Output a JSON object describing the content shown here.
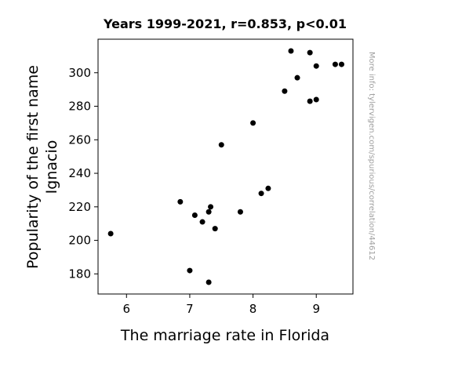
{
  "chart_data": {
    "type": "scatter",
    "title": "Years 1999-2021, r=0.853, p<0.01",
    "xlabel": "The marriage rate in Florida",
    "ylabel_lines": [
      "Popularity of the first name",
      "Ignacio"
    ],
    "side_note": "More info: tylervigen.com/spurious/correlation/44612",
    "xlim": [
      5.55,
      9.58
    ],
    "ylim": [
      168,
      320
    ],
    "xticks": [
      6,
      7,
      8,
      9
    ],
    "yticks": [
      180,
      200,
      220,
      240,
      260,
      280,
      300
    ],
    "grid": false,
    "marker_color": "#000000",
    "points": [
      {
        "x": 5.75,
        "y": 204
      },
      {
        "x": 6.85,
        "y": 223
      },
      {
        "x": 7.0,
        "y": 182
      },
      {
        "x": 7.08,
        "y": 215
      },
      {
        "x": 7.2,
        "y": 211
      },
      {
        "x": 7.3,
        "y": 217
      },
      {
        "x": 7.33,
        "y": 220
      },
      {
        "x": 7.3,
        "y": 175
      },
      {
        "x": 7.4,
        "y": 207
      },
      {
        "x": 7.5,
        "y": 257
      },
      {
        "x": 7.8,
        "y": 217
      },
      {
        "x": 8.0,
        "y": 270
      },
      {
        "x": 8.13,
        "y": 228
      },
      {
        "x": 8.24,
        "y": 231
      },
      {
        "x": 8.5,
        "y": 289
      },
      {
        "x": 8.6,
        "y": 313
      },
      {
        "x": 8.7,
        "y": 297
      },
      {
        "x": 8.9,
        "y": 312
      },
      {
        "x": 8.9,
        "y": 283
      },
      {
        "x": 9.0,
        "y": 284
      },
      {
        "x": 9.0,
        "y": 304
      },
      {
        "x": 9.3,
        "y": 305
      },
      {
        "x": 9.4,
        "y": 305
      }
    ]
  }
}
